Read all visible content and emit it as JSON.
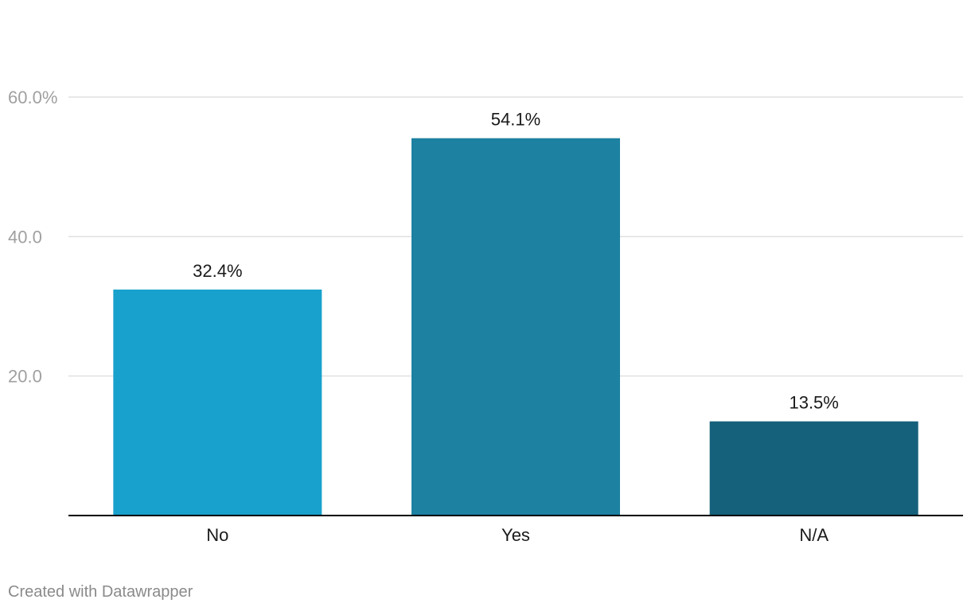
{
  "chart_data": {
    "type": "bar",
    "categories": [
      "No",
      "Yes",
      "N/A"
    ],
    "values": [
      32.4,
      54.1,
      13.5
    ],
    "value_labels": [
      "32.4%",
      "54.1%",
      "13.5%"
    ],
    "colors": [
      "#18a1cd",
      "#1d81a2",
      "#15607a"
    ],
    "yticks": [
      20,
      40,
      60
    ],
    "ytick_labels": [
      "20.0",
      "40.0",
      "60.0%"
    ],
    "ylim": [
      0,
      60
    ],
    "grid": true,
    "title": "",
    "xlabel": "",
    "ylabel": ""
  },
  "credit": "Created with Datawrapper",
  "style": {
    "grid_color": "#e0e0e0",
    "axis_color": "#000000",
    "tick_label_color": "#a0a0a0",
    "value_label_color": "#1a1a1a",
    "category_label_color": "#1a1a1a"
  }
}
